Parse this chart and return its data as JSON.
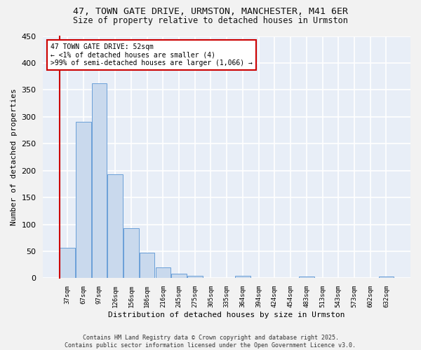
{
  "title_line1": "47, TOWN GATE DRIVE, URMSTON, MANCHESTER, M41 6ER",
  "title_line2": "Size of property relative to detached houses in Urmston",
  "xlabel": "Distribution of detached houses by size in Urmston",
  "ylabel": "Number of detached properties",
  "bar_color": "#c9d9ed",
  "bar_edge_color": "#6a9fd8",
  "background_color": "#e8eef7",
  "grid_color": "#ffffff",
  "fig_background": "#f2f2f2",
  "categories": [
    "37sqm",
    "67sqm",
    "97sqm",
    "126sqm",
    "156sqm",
    "186sqm",
    "216sqm",
    "245sqm",
    "275sqm",
    "305sqm",
    "335sqm",
    "364sqm",
    "394sqm",
    "424sqm",
    "454sqm",
    "483sqm",
    "513sqm",
    "543sqm",
    "573sqm",
    "602sqm",
    "632sqm"
  ],
  "values": [
    57,
    291,
    362,
    193,
    93,
    48,
    20,
    8,
    4,
    0,
    0,
    4,
    0,
    0,
    0,
    3,
    0,
    0,
    0,
    0,
    3
  ],
  "ylim": [
    0,
    450
  ],
  "yticks": [
    0,
    50,
    100,
    150,
    200,
    250,
    300,
    350,
    400,
    450
  ],
  "annotation_text": "47 TOWN GATE DRIVE: 52sqm\n← <1% of detached houses are smaller (4)\n>99% of semi-detached houses are larger (1,066) →",
  "annotation_box_color": "#ffffff",
  "annotation_border_color": "#cc0000",
  "red_line_color": "#cc0000",
  "footer_line1": "Contains HM Land Registry data © Crown copyright and database right 2025.",
  "footer_line2": "Contains public sector information licensed under the Open Government Licence v3.0."
}
